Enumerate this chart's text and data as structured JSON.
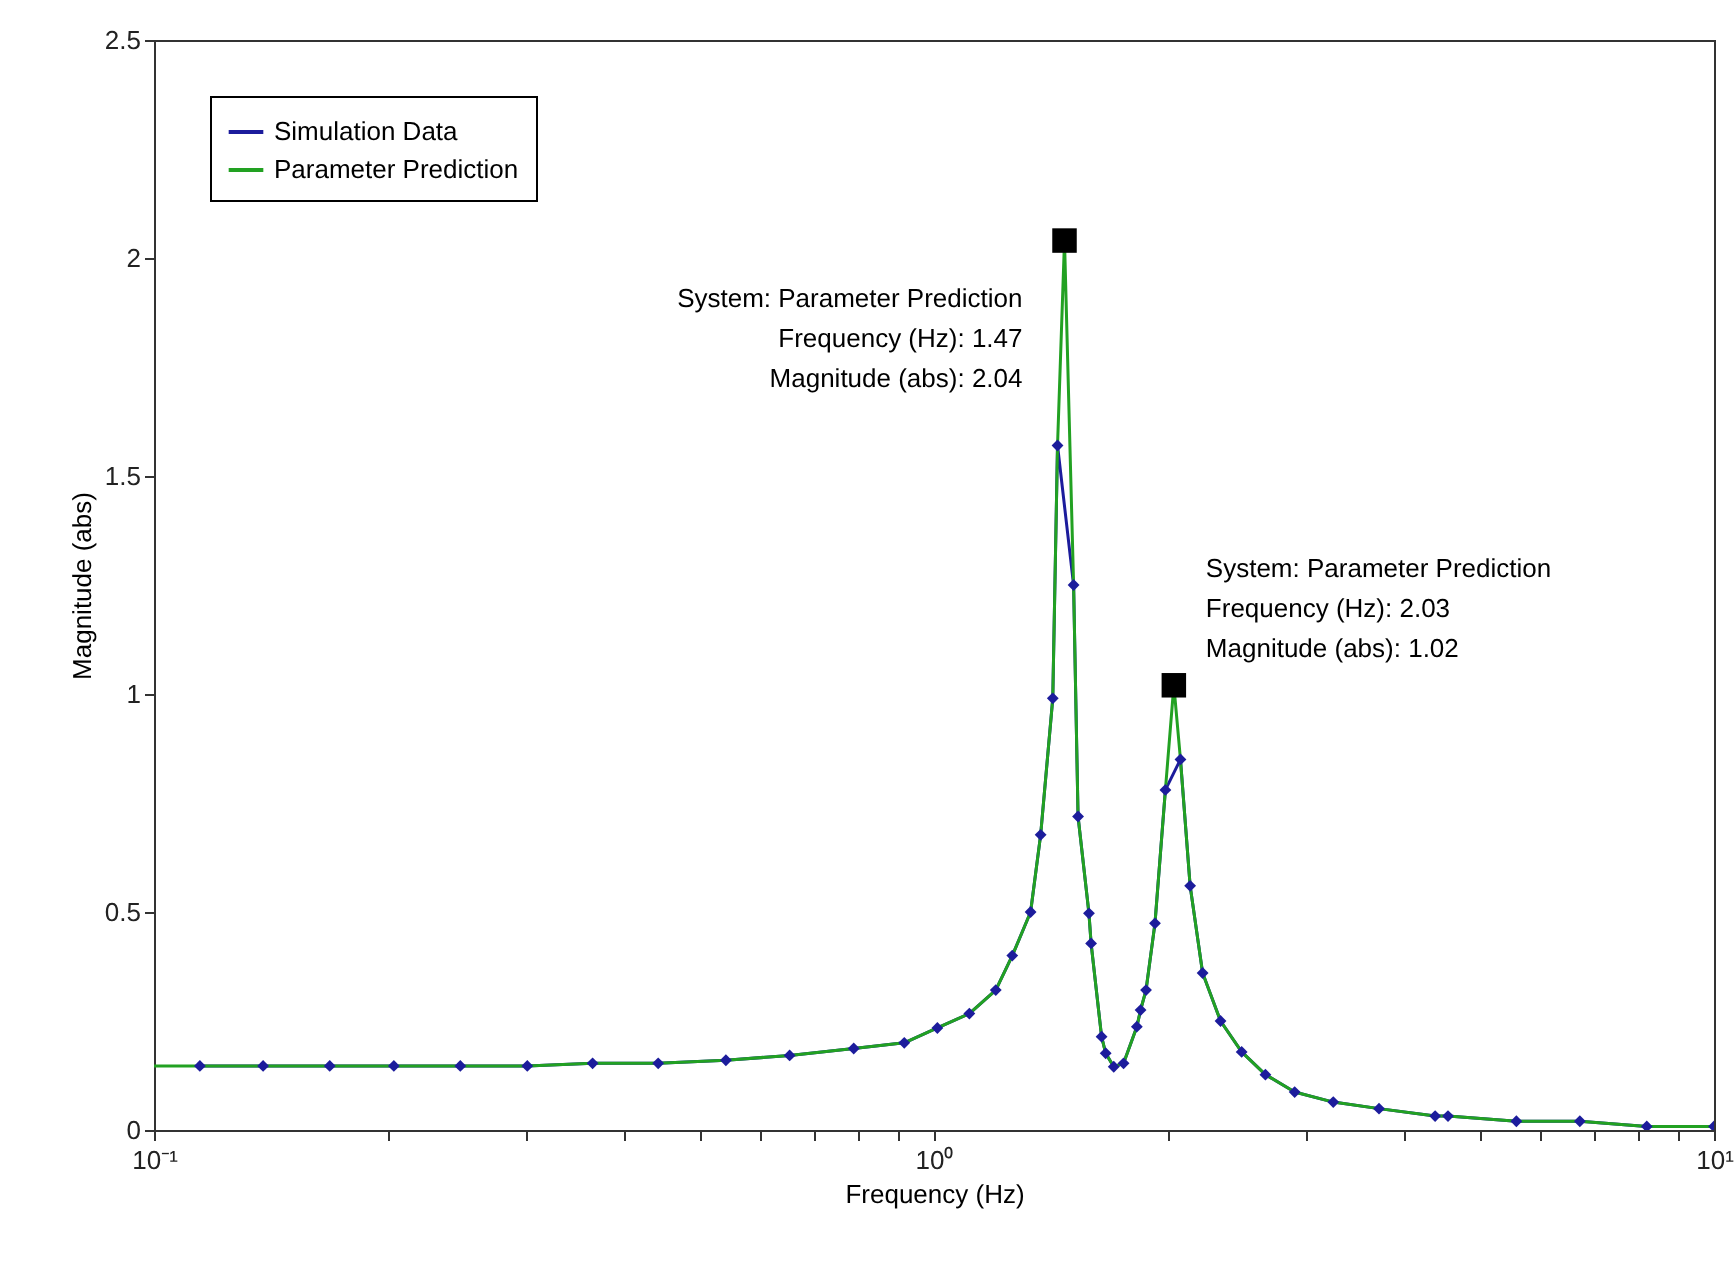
{
  "chart_data": {
    "type": "line",
    "xlabel": "Frequency (Hz)",
    "ylabel": "Magnitude (abs)",
    "log": "x",
    "xlim": [
      0.1,
      10
    ],
    "ylim": [
      0,
      2.5
    ],
    "xticks": [
      {
        "value": 0.1,
        "label": "10⁻¹"
      },
      {
        "value": 0.2,
        "label": null
      },
      {
        "value": 0.3,
        "label": null
      },
      {
        "value": 0.4,
        "label": null
      },
      {
        "value": 0.5,
        "label": null
      },
      {
        "value": 0.6,
        "label": null
      },
      {
        "value": 0.7,
        "label": null
      },
      {
        "value": 0.8,
        "label": null
      },
      {
        "value": 0.9,
        "label": null
      },
      {
        "value": 1,
        "label": "10⁰"
      },
      {
        "value": 2,
        "label": null
      },
      {
        "value": 3,
        "label": null
      },
      {
        "value": 4,
        "label": null
      },
      {
        "value": 5,
        "label": null
      },
      {
        "value": 6,
        "label": null
      },
      {
        "value": 7,
        "label": null
      },
      {
        "value": 8,
        "label": null
      },
      {
        "value": 9,
        "label": null
      },
      {
        "value": 10,
        "label": "10¹"
      }
    ],
    "yticks": [
      0,
      0.5,
      1,
      1.5,
      2,
      2.5
    ],
    "grid": false,
    "legend": "top left",
    "series": [
      {
        "name": "Simulation Data",
        "color": "#1c1c9c",
        "marker": "diamond",
        "x": [
          0.1145,
          0.138,
          0.168,
          0.203,
          0.247,
          0.301,
          0.365,
          0.443,
          0.541,
          0.653,
          0.789,
          0.916,
          1.01,
          1.11,
          1.2,
          1.26,
          1.33,
          1.37,
          1.42,
          1.44,
          1.51,
          1.53,
          1.58,
          1.59,
          1.64,
          1.66,
          1.7,
          1.75,
          1.82,
          1.84,
          1.87,
          1.92,
          1.98,
          2.07,
          2.13,
          2.21,
          2.33,
          2.48,
          2.66,
          2.9,
          3.25,
          3.72,
          4.39,
          4.56,
          5.58,
          6.73,
          8.2,
          10
        ],
        "values": [
          0.147,
          0.147,
          0.147,
          0.147,
          0.147,
          0.147,
          0.153,
          0.153,
          0.16,
          0.171,
          0.187,
          0.2,
          0.234,
          0.267,
          0.321,
          0.4,
          0.5,
          0.677,
          0.99,
          1.57,
          1.25,
          0.719,
          0.497,
          0.428,
          0.214,
          0.176,
          0.145,
          0.153,
          0.237,
          0.275,
          0.321,
          0.474,
          0.78,
          0.85,
          0.56,
          0.36,
          0.25,
          0.179,
          0.127,
          0.087,
          0.064,
          0.049,
          0.032,
          0.032,
          0.02,
          0.02,
          0.008,
          0.008
        ]
      },
      {
        "name": "Parameter Prediction",
        "color": "#22a122",
        "marker": "none",
        "x": [
          0.1,
          0.1145,
          0.138,
          0.168,
          0.203,
          0.247,
          0.301,
          0.365,
          0.443,
          0.541,
          0.653,
          0.789,
          0.916,
          1.01,
          1.11,
          1.2,
          1.26,
          1.33,
          1.37,
          1.42,
          1.44,
          1.47,
          1.51,
          1.53,
          1.58,
          1.59,
          1.64,
          1.66,
          1.7,
          1.75,
          1.82,
          1.84,
          1.87,
          1.92,
          1.98,
          2.03,
          2.07,
          2.13,
          2.21,
          2.33,
          2.48,
          2.66,
          2.9,
          3.25,
          3.72,
          4.39,
          4.56,
          5.58,
          6.73,
          8.2,
          10
        ],
        "values": [
          0.147,
          0.147,
          0.147,
          0.147,
          0.147,
          0.147,
          0.147,
          0.153,
          0.153,
          0.16,
          0.171,
          0.187,
          0.2,
          0.234,
          0.267,
          0.321,
          0.4,
          0.5,
          0.677,
          0.99,
          1.57,
          2.04,
          1.25,
          0.719,
          0.497,
          0.428,
          0.214,
          0.176,
          0.145,
          0.153,
          0.237,
          0.275,
          0.321,
          0.474,
          0.78,
          1.02,
          0.85,
          0.56,
          0.36,
          0.25,
          0.179,
          0.127,
          0.087,
          0.064,
          0.049,
          0.032,
          0.032,
          0.02,
          0.02,
          0.008,
          0.008
        ]
      }
    ],
    "annotations": [
      {
        "text": "System: Parameter Prediction\nFrequency (Hz): 1.47\nMagnitude (abs): 2.04",
        "x": 1.47,
        "y": 2.04
      },
      {
        "text": "System: Parameter Prediction\nFrequency (Hz): 2.03\nMagnitude (abs): 1.02",
        "x": 2.03,
        "y": 1.02
      }
    ]
  }
}
